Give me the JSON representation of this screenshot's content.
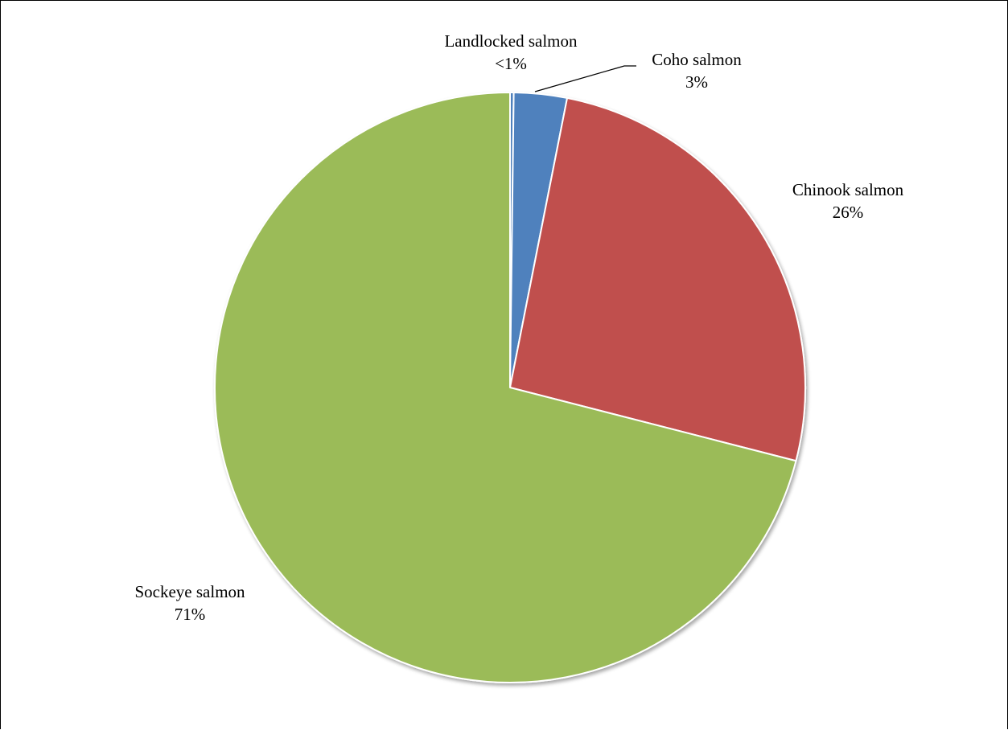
{
  "chart_data": {
    "type": "pie",
    "start_angle_deg": 0,
    "direction": "clockwise",
    "slices": [
      {
        "name": "Landlocked salmon",
        "value": 0.2,
        "label": "<1%",
        "color": "#4f81bd"
      },
      {
        "name": "Coho salmon",
        "value": 2.9,
        "label": "3%",
        "color": "#4f81bd"
      },
      {
        "name": "Chinook salmon",
        "value": 25.9,
        "label": "26%",
        "color": "#c0504d"
      },
      {
        "name": "Sockeye salmon",
        "value": 71.0,
        "label": "71%",
        "color": "#9bbb59"
      }
    ],
    "slice_border_color": "#ffffff",
    "leader_line_color": "#000000"
  }
}
